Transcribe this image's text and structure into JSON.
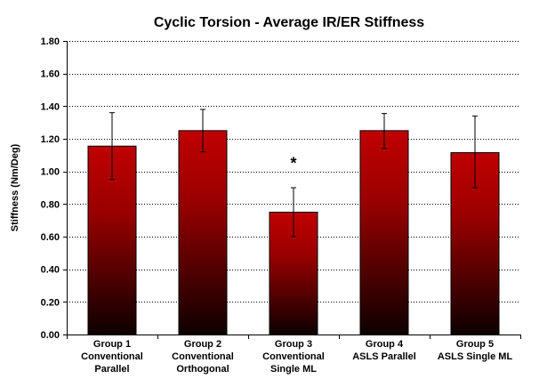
{
  "chart_data": {
    "type": "bar",
    "title": "Cyclic Torsion - Average IR/ER Stiffness",
    "ylabel": "Stiffness (Nm/Deg)",
    "xlabel": "",
    "ylim": [
      0,
      1.8
    ],
    "yticks": [
      "0.00",
      "0.20",
      "0.40",
      "0.60",
      "0.80",
      "1.00",
      "1.20",
      "1.40",
      "1.60",
      "1.80"
    ],
    "ytick_values": [
      0,
      0.2,
      0.4,
      0.6,
      0.8,
      1.0,
      1.2,
      1.4,
      1.6,
      1.8
    ],
    "grid": "horizontal dotted",
    "categories": [
      [
        "Group 1",
        "Conventional",
        "Parallel"
      ],
      [
        "Group 2",
        "Conventional",
        "Orthogonal"
      ],
      [
        "Group 3",
        "Conventional",
        "Single ML"
      ],
      [
        "Group 4",
        "ASLS Parallel"
      ],
      [
        "Group 5",
        "ASLS Single ML"
      ]
    ],
    "values": [
      1.155,
      1.25,
      0.75,
      1.25,
      1.115
    ],
    "error_bars": [
      [
        0.95,
        1.36
      ],
      [
        1.12,
        1.38
      ],
      [
        0.6,
        0.9
      ],
      [
        1.14,
        1.355
      ],
      [
        0.9,
        1.34
      ]
    ],
    "annotations": [
      {
        "category_index": 2,
        "text": "*",
        "y": 1.06
      }
    ],
    "colors": {
      "bar_top": "#c00000",
      "bar_bottom": "#0d0000",
      "axis": "#000000",
      "grid": "#000000"
    }
  }
}
